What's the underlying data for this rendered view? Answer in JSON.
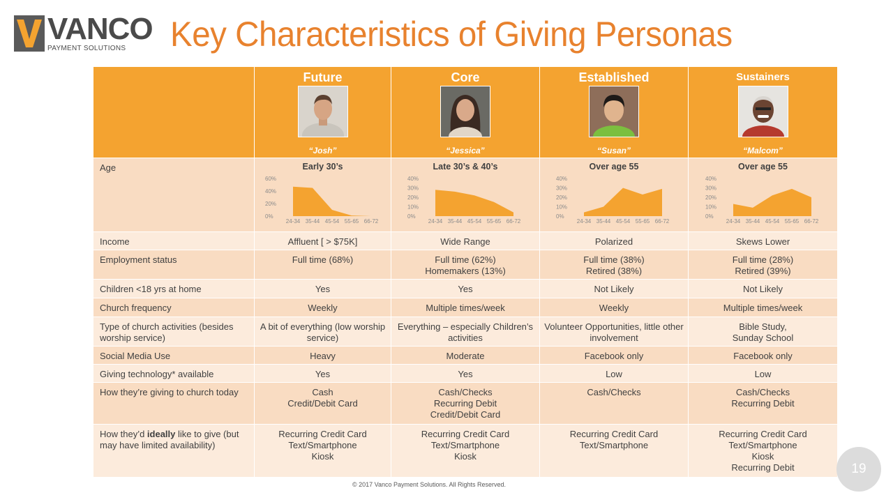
{
  "logo": {
    "word": "VANCO",
    "sub": "PAYMENT SOLUTIONS",
    "colors": {
      "mark": "#5a5a5a",
      "accent": "#f4a330"
    }
  },
  "title": "Key Characteristics of Giving Personas",
  "personas": [
    {
      "name": "Future",
      "quote": "“Josh”",
      "photo": "man-portrait-icon"
    },
    {
      "name": "Core",
      "quote": "“Jessica”",
      "photo": "woman-portrait-icon"
    },
    {
      "name": "Established",
      "quote": "“Susan”",
      "photo": "woman-portrait-icon"
    },
    {
      "name": "Sustainers",
      "quote": "“Malcom”",
      "photo": "man-portrait-icon"
    }
  ],
  "age_row": {
    "label": "Age",
    "titles": [
      "Early 30’s",
      "Late 30’s & 40’s",
      "Over age 55",
      "Over age 55"
    ]
  },
  "chart_data": [
    {
      "type": "area",
      "categories": [
        "24-34",
        "35-44",
        "45-54",
        "55-65",
        "66-72"
      ],
      "values": [
        47,
        45,
        10,
        1,
        0
      ],
      "ylim": [
        0,
        60
      ],
      "yticks": [
        "0%",
        "20%",
        "40%",
        "60%"
      ],
      "ytick_values": [
        0,
        20,
        40,
        60
      ],
      "color": "#f4a330"
    },
    {
      "type": "area",
      "categories": [
        "24-34",
        "35-44",
        "45-54",
        "55-65",
        "66-72"
      ],
      "values": [
        28,
        26,
        22,
        15,
        4
      ],
      "ylim": [
        0,
        40
      ],
      "yticks": [
        "0%",
        "10%",
        "20%",
        "30%",
        "40%"
      ],
      "ytick_values": [
        0,
        10,
        20,
        30,
        40
      ],
      "color": "#f4a330"
    },
    {
      "type": "area",
      "categories": [
        "24-34",
        "35-44",
        "45-54",
        "55-65",
        "66-72"
      ],
      "values": [
        4,
        10,
        30,
        23,
        29
      ],
      "ylim": [
        0,
        40
      ],
      "yticks": [
        "0%",
        "10%",
        "20%",
        "30%",
        "40%"
      ],
      "ytick_values": [
        0,
        10,
        20,
        30,
        40
      ],
      "color": "#f4a330"
    },
    {
      "type": "area",
      "categories": [
        "24-34",
        "35-44",
        "45-54",
        "55-65",
        "66-72"
      ],
      "values": [
        13,
        9,
        22,
        29,
        20
      ],
      "ylim": [
        0,
        40
      ],
      "yticks": [
        "0%",
        "10%",
        "20%",
        "30%",
        "40%"
      ],
      "ytick_values": [
        0,
        10,
        20,
        30,
        40
      ],
      "color": "#f4a330"
    }
  ],
  "rows": [
    {
      "label": "Income",
      "values": [
        "Affluent [ > $75K]",
        "Wide Range",
        "Polarized",
        "Skews Lower"
      ],
      "shade": "light",
      "height": 26
    },
    {
      "label": "Employment status",
      "values": [
        "Full time (68%)",
        "Full time (62%)\nHomemakers (13%)",
        "Full time (38%)\nRetired (38%)",
        "Full time (28%)\nRetired (39%)"
      ],
      "shade": "dark",
      "height": 42
    },
    {
      "label": "Children <18 yrs at home",
      "values": [
        "Yes",
        "Yes",
        "Not Likely",
        "Not Likely"
      ],
      "shade": "light",
      "height": 27
    },
    {
      "label": "Church frequency",
      "values": [
        "Weekly",
        "Multiple times/week",
        "Weekly",
        "Multiple times/week"
      ],
      "shade": "dark",
      "height": 27
    },
    {
      "label": "Type of church activities (besides worship service)",
      "values": [
        "A bit of everything (low worship service)",
        "Everything – especially Children’s activities",
        "Volunteer Opportunities, little other involvement",
        "Bible Study,\nSunday School"
      ],
      "shade": "light",
      "height": 42
    },
    {
      "label": "Social Media Use",
      "values": [
        "Heavy",
        "Moderate",
        "Facebook only",
        "Facebook only"
      ],
      "shade": "dark",
      "height": 26
    },
    {
      "label": "Giving technology* available",
      "values": [
        "Yes",
        "Yes",
        "Low",
        "Low"
      ],
      "shade": "light",
      "height": 26
    },
    {
      "label": "How they’re giving to church today",
      "values": [
        "Cash\nCredit/Debit Card",
        "Cash/Checks\nRecurring Debit\nCredit/Debit Card",
        "Cash/Checks",
        "Cash/Checks\nRecurring Debit"
      ],
      "shade": "dark",
      "height": 60
    },
    {
      "label_html_parts": [
        "How they’d ",
        "ideally",
        " like to give (but may have limited availability)"
      ],
      "values": [
        "Recurring Credit Card\nText/Smartphone\nKiosk",
        "Recurring Credit Card\nText/Smartphone\nKiosk",
        "Recurring Credit Card\nText/Smartphone",
        "Recurring Credit Card\nText/Smartphone\nKiosk\nRecurring Debit"
      ],
      "shade": "light",
      "height": 76
    }
  ],
  "page_number": "19",
  "footer": "© 2017 Vanco Payment Solutions. All Rights Reserved."
}
